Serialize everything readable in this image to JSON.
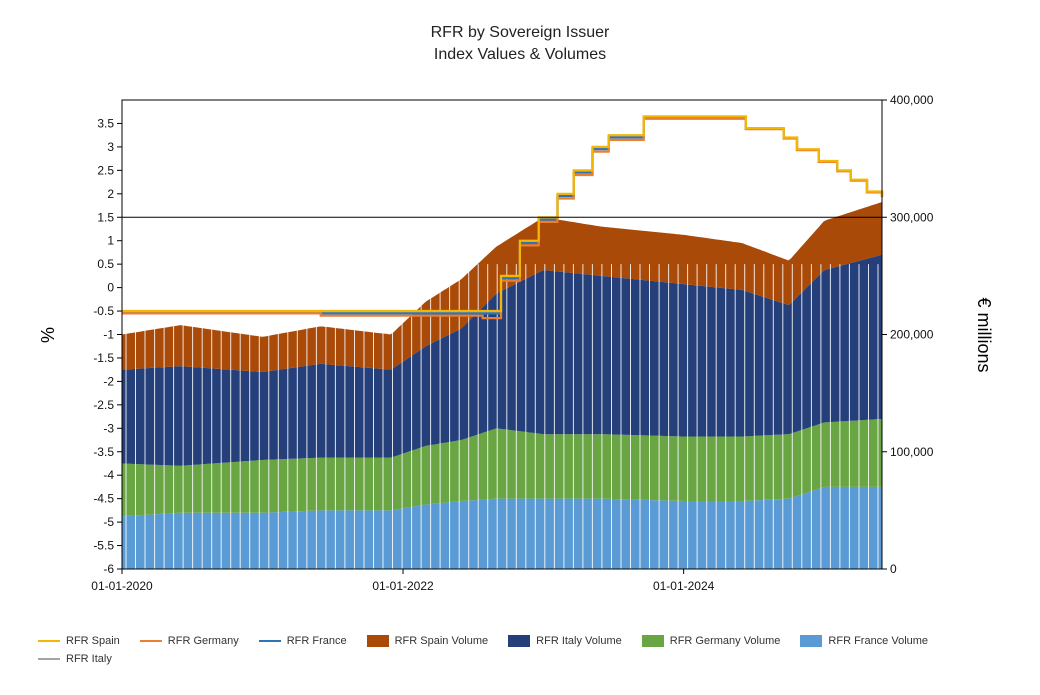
{
  "chart_data": {
    "type": "area",
    "title": "RFR by Sovereign Issuer",
    "subtitle": "Index Values & Volumes",
    "ylabel_left": "%",
    "ylabel_right": "€ millions",
    "x_ticks": [
      "01-01-2020",
      "01-01-2022",
      "01-01-2024"
    ],
    "x_range": [
      "2020-01-01",
      "2025-05-31"
    ],
    "ylim_left": [
      -6,
      4
    ],
    "ylim_right": [
      0,
      400000
    ],
    "y_ticks_left": [
      "-6",
      "-5.5",
      "-5",
      "-4.5",
      "-4",
      "-3.5",
      "-3",
      "-2.5",
      "-2",
      "-1.5",
      "-1",
      "-0.5",
      "0",
      "0.5",
      "1",
      "1.5",
      "2",
      "2.5",
      "3",
      "3.5"
    ],
    "y_ticks_right": [
      "0",
      "100,000",
      "200,000",
      "300,000",
      "400,000"
    ],
    "grid": "single horizontal line at 1.5% / 300,000",
    "legend_position": "bottom",
    "volume_series": [
      {
        "name": "RFR Spain Volume",
        "color": "#a94a08",
        "x": [
          "2020-01-01",
          "2020-06-01",
          "2021-01-01",
          "2021-06-01",
          "2021-12-01",
          "2022-03-01",
          "2022-06-01",
          "2022-09-01",
          "2023-01-01",
          "2023-06-01",
          "2024-01-01",
          "2024-06-01",
          "2024-10-01",
          "2025-01-01",
          "2025-05-31"
        ],
        "values": [
          30000,
          35000,
          30000,
          32000,
          30000,
          38000,
          42000,
          40000,
          45000,
          42000,
          42000,
          40000,
          38000,
          42000,
          45000
        ]
      },
      {
        "name": "RFR Italy Volume",
        "color": "#243f7a",
        "x": [
          "2020-01-01",
          "2020-06-01",
          "2021-01-01",
          "2021-06-01",
          "2021-12-01",
          "2022-03-01",
          "2022-06-01",
          "2022-09-01",
          "2023-01-01",
          "2023-06-01",
          "2024-01-01",
          "2024-06-01",
          "2024-10-01",
          "2025-01-01",
          "2025-05-31"
        ],
        "values": [
          80000,
          85000,
          75000,
          80000,
          75000,
          85000,
          95000,
          115000,
          140000,
          135000,
          130000,
          125000,
          110000,
          130000,
          140000
        ]
      },
      {
        "name": "RFR Germany Volume",
        "color": "#6aa544",
        "x": [
          "2020-01-01",
          "2020-06-01",
          "2021-01-01",
          "2021-06-01",
          "2021-12-01",
          "2022-03-01",
          "2022-06-01",
          "2022-09-01",
          "2023-01-01",
          "2023-06-01",
          "2024-01-01",
          "2024-06-01",
          "2024-10-01",
          "2025-01-01",
          "2025-05-31"
        ],
        "values": [
          45000,
          40000,
          45000,
          45000,
          45000,
          50000,
          52000,
          60000,
          55000,
          55000,
          55000,
          55000,
          55000,
          55000,
          58000
        ]
      },
      {
        "name": "RFR France Volume",
        "color": "#5b9bd5",
        "x": [
          "2020-01-01",
          "2020-06-01",
          "2021-01-01",
          "2021-06-01",
          "2021-12-01",
          "2022-03-01",
          "2022-06-01",
          "2022-09-01",
          "2023-01-01",
          "2023-06-01",
          "2024-01-01",
          "2024-06-01",
          "2024-10-01",
          "2025-01-01",
          "2025-05-31"
        ],
        "values": [
          45000,
          48000,
          48000,
          50000,
          50000,
          55000,
          58000,
          60000,
          60000,
          60000,
          58000,
          58000,
          60000,
          70000,
          70000
        ]
      }
    ],
    "rate_series": [
      {
        "name": "RFR Spain",
        "color": "#f2b705",
        "x": [
          "2020-01-01",
          "2022-07-27",
          "2022-09-13",
          "2022-11-01",
          "2022-12-20",
          "2023-02-07",
          "2023-03-21",
          "2023-05-09",
          "2023-06-20",
          "2023-09-19",
          "2024-06-11",
          "2024-09-17",
          "2024-10-22",
          "2024-12-17",
          "2025-02-04",
          "2025-03-11",
          "2025-04-22",
          "2025-05-31"
        ],
        "values": [
          -0.5,
          -0.5,
          0.25,
          1.0,
          1.5,
          2.0,
          2.5,
          3.0,
          3.25,
          3.65,
          3.4,
          3.2,
          2.95,
          2.7,
          2.5,
          2.3,
          2.05,
          1.95
        ]
      },
      {
        "name": "RFR Germany",
        "color": "#ed7d31",
        "x": [
          "2020-01-01",
          "2021-06-01",
          "2022-07-27",
          "2022-09-13",
          "2022-11-01",
          "2022-12-20",
          "2023-02-07",
          "2023-03-21",
          "2023-05-09",
          "2023-06-20",
          "2023-09-19",
          "2024-06-11",
          "2024-09-17",
          "2024-10-22",
          "2024-12-17",
          "2025-02-04",
          "2025-03-11",
          "2025-04-22",
          "2025-05-31"
        ],
        "values": [
          -0.55,
          -0.6,
          -0.65,
          0.15,
          0.9,
          1.4,
          1.9,
          2.4,
          2.9,
          3.15,
          3.6,
          3.38,
          3.18,
          2.93,
          2.68,
          2.48,
          2.28,
          2.03,
          1.93
        ]
      },
      {
        "name": "RFR France",
        "color": "#2e75b6",
        "x": [
          "2020-01-01",
          "2022-07-27",
          "2022-09-13",
          "2022-11-01",
          "2022-12-20",
          "2023-02-07",
          "2023-03-21",
          "2023-05-09",
          "2023-06-20",
          "2023-09-19",
          "2024-06-11",
          "2024-09-17",
          "2024-10-22",
          "2024-12-17",
          "2025-02-04",
          "2025-03-11",
          "2025-04-22",
          "2025-05-31"
        ],
        "values": [
          -0.55,
          -0.55,
          0.2,
          0.95,
          1.45,
          1.95,
          2.45,
          2.95,
          3.2,
          3.62,
          3.39,
          3.19,
          2.94,
          2.69,
          2.49,
          2.29,
          2.04,
          1.94
        ]
      },
      {
        "name": "RFR Italy",
        "color": "#a5a5a5",
        "x": [
          "2020-01-01",
          "2022-07-27",
          "2022-09-13",
          "2022-11-01",
          "2022-12-20",
          "2023-02-07",
          "2023-03-21",
          "2023-05-09",
          "2023-06-20",
          "2023-09-19",
          "2024-06-11",
          "2024-09-17",
          "2024-10-22",
          "2024-12-17",
          "2025-02-04",
          "2025-03-11",
          "2025-04-22",
          "2025-05-31"
        ],
        "values": [
          -0.52,
          -0.52,
          0.22,
          0.97,
          1.47,
          1.97,
          2.47,
          2.97,
          3.22,
          3.63,
          3.39,
          3.19,
          2.94,
          2.69,
          2.49,
          2.29,
          2.04,
          1.94
        ]
      }
    ],
    "legend": [
      "RFR Spain",
      "RFR Germany",
      "RFR France",
      "RFR Spain Volume",
      "RFR Italy Volume",
      "RFR Germany Volume",
      "RFR France Volume",
      "RFR Italy"
    ]
  }
}
